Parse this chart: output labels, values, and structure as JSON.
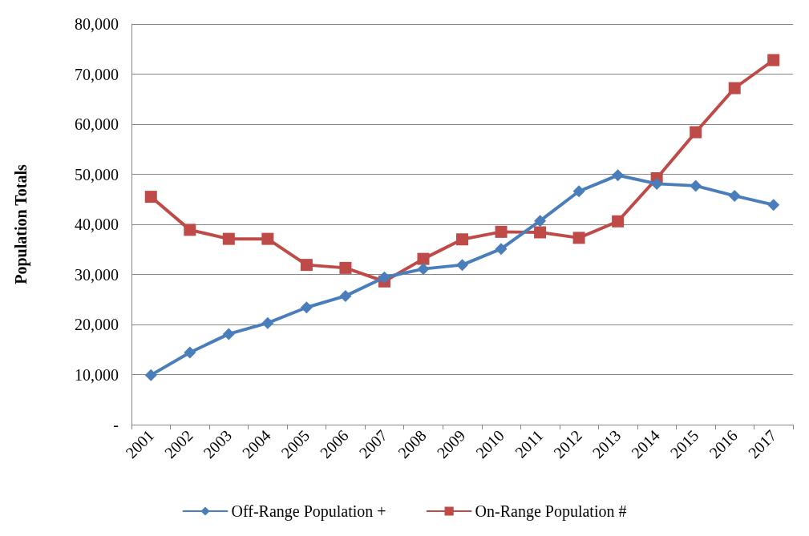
{
  "chart_data": {
    "type": "line",
    "ylabel": "Population Totals",
    "categories": [
      "2001",
      "2002",
      "2003",
      "2004",
      "2005",
      "2006",
      "2007",
      "2008",
      "2009",
      "2010",
      "2011",
      "2012",
      "2013",
      "2014",
      "2015",
      "2016",
      "2017"
    ],
    "series": [
      {
        "name": "Off-Range Population +",
        "color": "#4a7ebb",
        "marker": "diamond",
        "values": [
          9900,
          14400,
          18100,
          20300,
          23400,
          25700,
          29400,
          31100,
          31900,
          35100,
          40700,
          46600,
          49800,
          48100,
          47700,
          45700,
          43900
        ]
      },
      {
        "name": "On-Range Population #",
        "color": "#be4b48",
        "marker": "square",
        "values": [
          45500,
          38900,
          37100,
          37100,
          31900,
          31300,
          28600,
          33100,
          37000,
          38500,
          38400,
          37300,
          40600,
          49200,
          58400,
          67200,
          72800
        ]
      }
    ],
    "ylim": [
      0,
      80000
    ],
    "yticks": [
      {
        "value": 0,
        "label": "-"
      },
      {
        "value": 10000,
        "label": "10,000"
      },
      {
        "value": 20000,
        "label": "20,000"
      },
      {
        "value": 30000,
        "label": "30,000"
      },
      {
        "value": 40000,
        "label": "40,000"
      },
      {
        "value": 50000,
        "label": "50,000"
      },
      {
        "value": 60000,
        "label": "60,000"
      },
      {
        "value": 70000,
        "label": "70,000"
      },
      {
        "value": 80000,
        "label": "80,000"
      }
    ],
    "grid": "y",
    "legend": "bottom",
    "line_style": "solid"
  }
}
